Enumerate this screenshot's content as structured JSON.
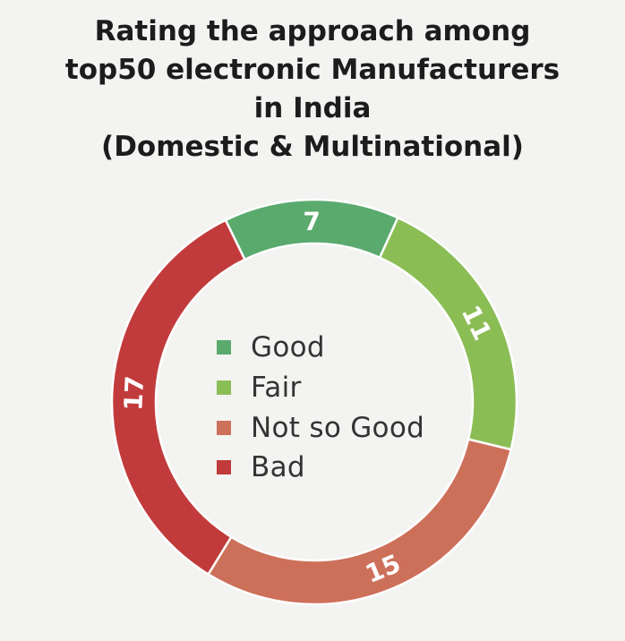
{
  "title_lines": [
    "Rating the approach among",
    "top50 electronic Manufacturers",
    "in India",
    "(Domestic & Multinational)"
  ],
  "chart_data": {
    "type": "pie",
    "subtype": "donut",
    "title": "Rating the approach among top50 electronic Manufacturers in India (Domestic & Multinational)",
    "categories": [
      "Good",
      "Fair",
      "Not so Good",
      "Bad"
    ],
    "values": [
      7,
      11,
      15,
      17
    ],
    "colors": [
      "#5aaa6e",
      "#8bbd55",
      "#cd705a",
      "#c23b3c"
    ],
    "data_labels": [
      "7",
      "11",
      "15",
      "17"
    ],
    "legend_position": "center"
  },
  "legend": [
    {
      "label": "Good",
      "color": "#5aaa6e"
    },
    {
      "label": "Fair",
      "color": "#8bbd55"
    },
    {
      "label": "Not so Good",
      "color": "#cd705a"
    },
    {
      "label": "Bad",
      "color": "#c23b3c"
    }
  ]
}
